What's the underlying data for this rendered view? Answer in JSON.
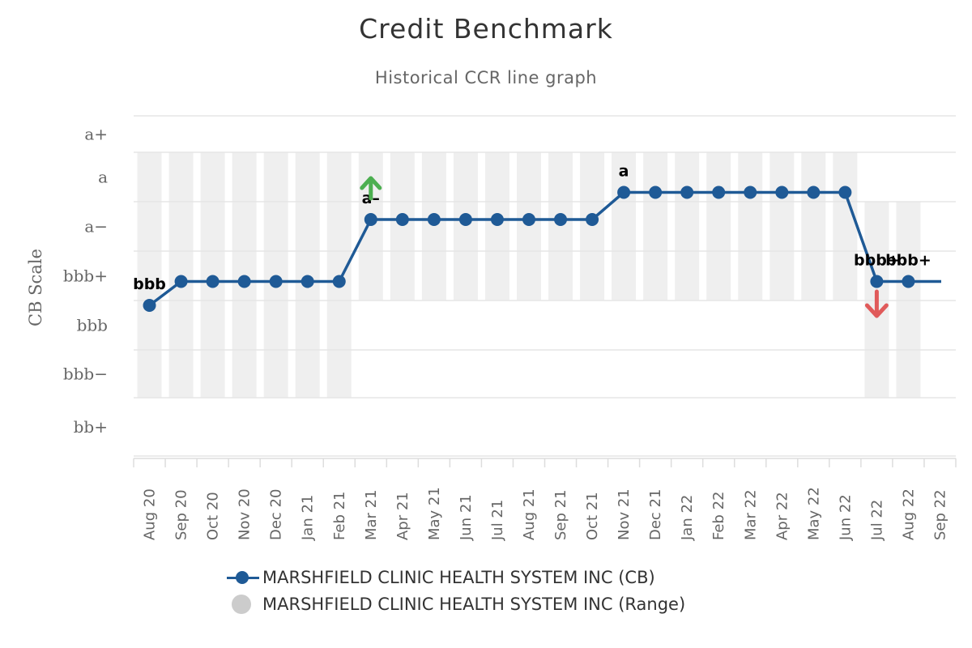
{
  "chart_data": {
    "type": "line",
    "title": "Credit Benchmark",
    "subtitle": "Historical CCR line graph",
    "ylabel": "CB Scale",
    "y_categories": [
      "bb+",
      "bbb−",
      "bbb",
      "bbb+",
      "a−",
      "a",
      "a+"
    ],
    "categories": [
      "Aug 20",
      "Sep 20",
      "Oct 20",
      "Nov 20",
      "Dec 20",
      "Jan 21",
      "Feb 21",
      "Mar 21",
      "Apr 21",
      "May 21",
      "Jun 21",
      "Jul 21",
      "Aug 21",
      "Sep 21",
      "Oct 21",
      "Nov 21",
      "Dec 21",
      "Jan 22",
      "Feb 22",
      "Mar 22",
      "Apr 22",
      "May 22",
      "Jun 22",
      "Jul 22",
      "Aug 22",
      "Sep 22"
    ],
    "series": [
      {
        "name": "MARSHFIELD CLINIC HEALTH SYSTEM INC (CB)",
        "color": "#1f5a96",
        "values": [
          "bbb",
          "bbb+",
          "bbb+",
          "bbb+",
          "bbb+",
          "bbb+",
          "bbb+",
          "a−",
          "a−",
          "a−",
          "a−",
          "a−",
          "a−",
          "a−",
          "a−",
          "a",
          "a",
          "a",
          "a",
          "a",
          "a",
          "a",
          "a",
          "bbb+",
          "bbb+",
          null
        ],
        "extend_to_last": true,
        "point_labels": [
          {
            "index": 0,
            "text": "bbb"
          },
          {
            "index": 7,
            "text": "a–"
          },
          {
            "index": 15,
            "text": "a"
          },
          {
            "index": 23,
            "text": "bbb+"
          },
          {
            "index": 24,
            "text": "bbb+"
          }
        ]
      },
      {
        "name": "MARSHFIELD CLINIC HEALTH SYSTEM INC (Range)",
        "color": "#cccccc",
        "ranges": [
          [
            "bbb−",
            "a"
          ],
          [
            "bbb−",
            "a"
          ],
          [
            "bbb−",
            "a"
          ],
          [
            "bbb−",
            "a"
          ],
          [
            "bbb−",
            "a"
          ],
          [
            "bbb−",
            "a"
          ],
          [
            "bbb−",
            "a"
          ],
          [
            "bbb+",
            "a"
          ],
          [
            "bbb+",
            "a"
          ],
          [
            "bbb+",
            "a"
          ],
          [
            "bbb+",
            "a"
          ],
          [
            "bbb+",
            "a"
          ],
          [
            "bbb+",
            "a"
          ],
          [
            "bbb+",
            "a"
          ],
          [
            "bbb+",
            "a"
          ],
          [
            "bbb+",
            "a"
          ],
          [
            "bbb+",
            "a"
          ],
          [
            "bbb+",
            "a"
          ],
          [
            "bbb+",
            "a"
          ],
          [
            "bbb+",
            "a"
          ],
          [
            "bbb+",
            "a"
          ],
          [
            "bbb+",
            "a"
          ],
          [
            "bbb+",
            "a"
          ],
          [
            "bbb−",
            "a−"
          ],
          [
            "bbb−",
            "a−"
          ],
          null
        ]
      }
    ],
    "markers": [
      {
        "index": 7,
        "direction": "up",
        "color": "#4caf50"
      },
      {
        "index": 23,
        "direction": "down",
        "color": "#e05a5a"
      }
    ],
    "grid": true,
    "legend_position": "bottom"
  },
  "legend": {
    "cb_label": "MARSHFIELD CLINIC HEALTH SYSTEM INC (CB)",
    "range_label": "MARSHFIELD CLINIC HEALTH SYSTEM INC (Range)"
  }
}
